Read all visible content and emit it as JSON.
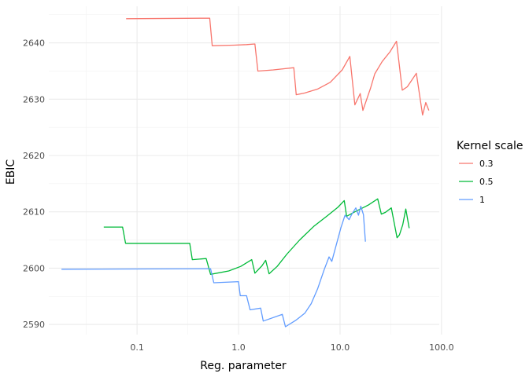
{
  "chart_data": {
    "type": "line",
    "title": "",
    "xlabel": "Reg. parameter",
    "ylabel": "EBIC",
    "x_scale": "log10",
    "xlim": [
      0.0135,
      95
    ],
    "ylim": [
      2588.2,
      2646.5
    ],
    "x_ticks": [
      0.1,
      1.0,
      10.0,
      100.0
    ],
    "x_tick_labels": [
      "0.1",
      "1.0",
      "10.0",
      "100.0"
    ],
    "y_ticks": [
      2590,
      2600,
      2610,
      2620,
      2630,
      2640
    ],
    "y_tick_labels": [
      "2590",
      "2600",
      "2610",
      "2620",
      "2630",
      "2640"
    ],
    "grid": true,
    "legend": {
      "title": "Kernel scale",
      "position": "right"
    },
    "series": [
      {
        "name": "0.3",
        "color": "#F8766D",
        "points": [
          [
            0.078,
            2644.3
          ],
          [
            0.52,
            2644.4
          ],
          [
            0.55,
            2639.5
          ],
          [
            0.9,
            2639.6
          ],
          [
            1.2,
            2639.7
          ],
          [
            1.45,
            2639.8
          ],
          [
            1.55,
            2635.0
          ],
          [
            2.2,
            2635.2
          ],
          [
            3.5,
            2635.6
          ],
          [
            3.7,
            2630.8
          ],
          [
            4.5,
            2631.1
          ],
          [
            6.0,
            2631.8
          ],
          [
            8.0,
            2633.0
          ],
          [
            10.5,
            2635.2
          ],
          [
            12.5,
            2637.6
          ],
          [
            14.0,
            2629.0
          ],
          [
            15.8,
            2631.0
          ],
          [
            16.8,
            2628.0
          ],
          [
            20.0,
            2632.0
          ],
          [
            22.0,
            2634.5
          ],
          [
            26.0,
            2636.7
          ],
          [
            31.0,
            2638.4
          ],
          [
            36.0,
            2640.3
          ],
          [
            41.0,
            2631.6
          ],
          [
            46.0,
            2632.2
          ],
          [
            51.0,
            2633.4
          ],
          [
            56.5,
            2634.6
          ],
          [
            65.0,
            2627.2
          ],
          [
            70.0,
            2629.4
          ],
          [
            75.0,
            2628.0
          ]
        ]
      },
      {
        "name": "0.5",
        "color": "#00BA38",
        "points": [
          [
            0.047,
            2607.3
          ],
          [
            0.072,
            2607.3
          ],
          [
            0.077,
            2604.4
          ],
          [
            0.33,
            2604.4
          ],
          [
            0.35,
            2601.5
          ],
          [
            0.48,
            2601.7
          ],
          [
            0.53,
            2598.9
          ],
          [
            0.8,
            2599.5
          ],
          [
            1.05,
            2600.3
          ],
          [
            1.35,
            2601.5
          ],
          [
            1.45,
            2599.1
          ],
          [
            1.7,
            2600.4
          ],
          [
            1.85,
            2601.4
          ],
          [
            2.0,
            2599.0
          ],
          [
            2.4,
            2600.3
          ],
          [
            3.0,
            2602.5
          ],
          [
            4.0,
            2605.0
          ],
          [
            5.5,
            2607.4
          ],
          [
            7.5,
            2609.3
          ],
          [
            9.5,
            2610.8
          ],
          [
            11.0,
            2612.0
          ],
          [
            11.6,
            2609.2
          ],
          [
            14.0,
            2610.0
          ],
          [
            19.0,
            2611.2
          ],
          [
            23.5,
            2612.3
          ],
          [
            25.5,
            2609.6
          ],
          [
            28.0,
            2609.9
          ],
          [
            32.0,
            2610.7
          ],
          [
            36.5,
            2605.4
          ],
          [
            38.5,
            2605.9
          ],
          [
            41.5,
            2607.7
          ],
          [
            44.5,
            2610.5
          ],
          [
            48.0,
            2607.1
          ]
        ]
      },
      {
        "name": "1",
        "color": "#619CFF",
        "points": [
          [
            0.018,
            2599.8
          ],
          [
            0.52,
            2599.9
          ],
          [
            0.53,
            2599.9
          ],
          [
            0.57,
            2597.4
          ],
          [
            1.0,
            2597.6
          ],
          [
            1.04,
            2595.1
          ],
          [
            1.2,
            2595.1
          ],
          [
            1.3,
            2592.6
          ],
          [
            1.65,
            2592.9
          ],
          [
            1.75,
            2590.6
          ],
          [
            2.7,
            2591.8
          ],
          [
            2.9,
            2589.6
          ],
          [
            3.7,
            2590.8
          ],
          [
            4.5,
            2592.0
          ],
          [
            5.2,
            2593.7
          ],
          [
            6.0,
            2596.3
          ],
          [
            7.0,
            2599.8
          ],
          [
            7.8,
            2602.0
          ],
          [
            8.3,
            2601.2
          ],
          [
            9.2,
            2604.2
          ],
          [
            10.2,
            2607.2
          ],
          [
            11.2,
            2609.4
          ],
          [
            12.3,
            2608.6
          ],
          [
            13.0,
            2609.5
          ],
          [
            14.3,
            2610.7
          ],
          [
            15.2,
            2609.4
          ],
          [
            16.0,
            2611.0
          ],
          [
            17.0,
            2609.5
          ],
          [
            17.8,
            2604.7
          ]
        ]
      }
    ]
  }
}
